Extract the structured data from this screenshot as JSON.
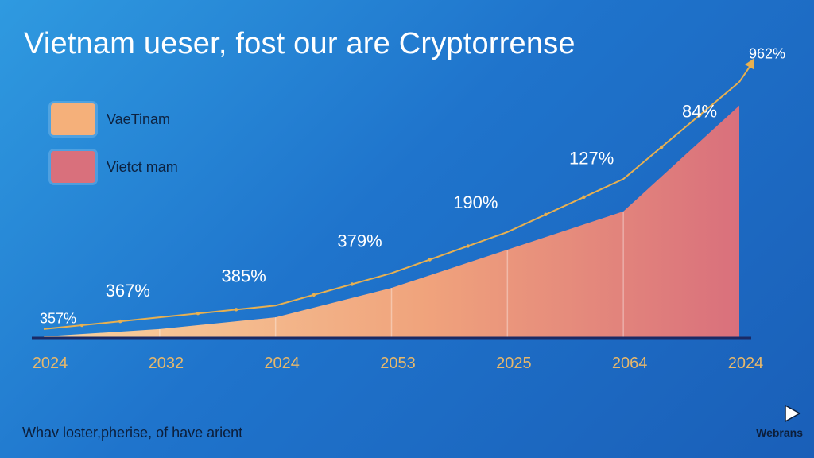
{
  "title": "Vietnam ueser, fost our are Cryptorrense",
  "legend": [
    {
      "label": "VaeTinam",
      "color": "#f5b07a"
    },
    {
      "label": "Vietct mam",
      "color": "#d9707c"
    }
  ],
  "footer_note": "Whav loster,pherise, of have arient",
  "brand": {
    "name": "Webrans",
    "icon": "play-triangle-icon"
  },
  "chart_data": {
    "type": "area",
    "categories": [
      "2024",
      "2032",
      "2024",
      "2053",
      "2025",
      "2064",
      "2024"
    ],
    "series": [
      {
        "values": [
          0.5,
          3,
          7,
          17,
          30,
          43,
          79
        ],
        "color_start": "#f8d3a0",
        "color_end": "#d9707c"
      },
      {
        "values": [
          3,
          7,
          11,
          22,
          36,
          54,
          87
        ],
        "color": "#e8b050"
      }
    ],
    "point_labels": [
      {
        "text": "357%",
        "x": 0,
        "y": 5
      },
      {
        "text": "367%",
        "x": 1,
        "y": 14
      },
      {
        "text": "385%",
        "x": 2,
        "y": 19
      },
      {
        "text": "379%",
        "x": 3,
        "y": 31
      },
      {
        "text": "190%",
        "x": 4,
        "y": 44
      },
      {
        "text": "127%",
        "x": 5,
        "y": 59
      },
      {
        "text": "84%",
        "x": 6,
        "y": 75
      },
      {
        "text": "962%",
        "x": 6,
        "y": 95
      }
    ],
    "ylim": [
      0,
      100
    ],
    "grid": false,
    "legend_position": "top-left"
  }
}
